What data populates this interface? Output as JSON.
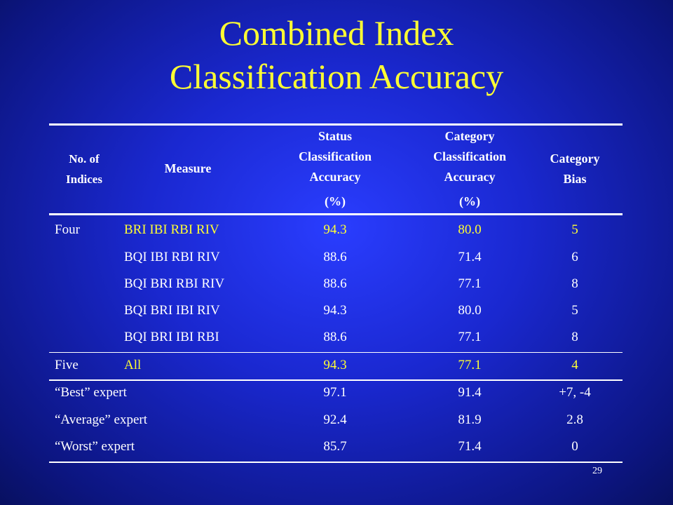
{
  "title": {
    "line1": "Combined Index",
    "line2": "Classification Accuracy"
  },
  "table": {
    "header": [
      [
        "No. of",
        "Indices"
      ],
      [
        "Measure"
      ],
      [
        "Status",
        "Classification",
        "Accuracy",
        "(%)"
      ],
      [
        "Category",
        "Classification",
        "Accuracy",
        "(%)"
      ],
      [
        "Category",
        "Bias"
      ]
    ],
    "rows": [
      {
        "group": "Four",
        "measure": "BRI IBI RBI RIV",
        "status": "94.3",
        "category": "80.0",
        "bias": "5"
      },
      {
        "measure": "BQI IBI RBI RIV",
        "status": "88.6",
        "category": "71.4",
        "bias": "6"
      },
      {
        "measure": "BQI BRI RBI RIV",
        "status": "88.6",
        "category": "77.1",
        "bias": "8"
      },
      {
        "measure": "BQI BRI IBI RIV",
        "status": "94.3",
        "category": "80.0",
        "bias": "5"
      },
      {
        "measure": "BQI BRI IBI RBI",
        "status": "88.6",
        "category": "77.1",
        "bias": "8"
      },
      {
        "group": "Five",
        "measure": "All",
        "status": "94.3",
        "category": "77.1",
        "bias": "4"
      },
      {
        "label": "“Best” expert",
        "status": "97.1",
        "category": "91.4",
        "bias": "+7, -4"
      },
      {
        "label": "“Average” expert",
        "status": "92.4",
        "category": "81.9",
        "bias": "2.8"
      },
      {
        "label": "“Worst” expert",
        "status": "85.7",
        "category": "71.4",
        "bias": "0"
      }
    ]
  },
  "page_number": "29"
}
